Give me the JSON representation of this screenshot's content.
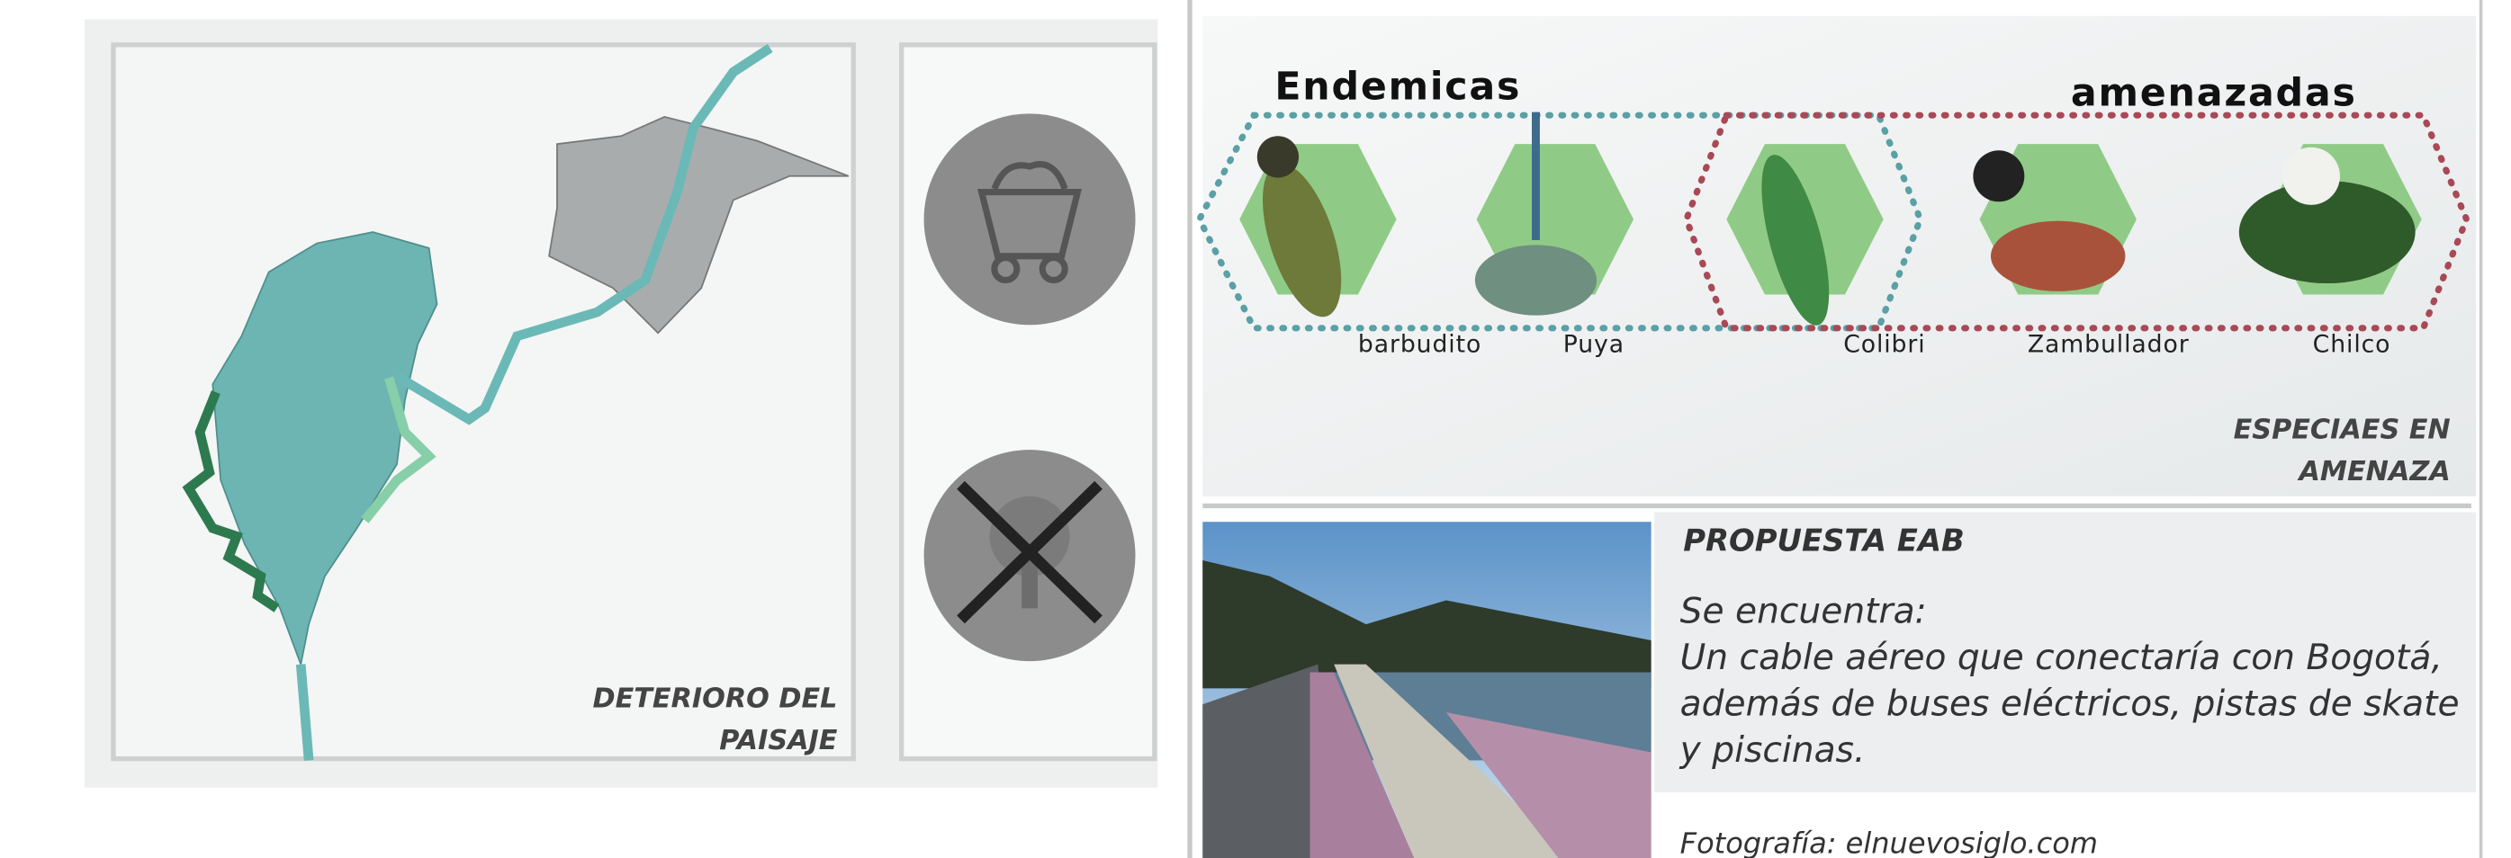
{
  "left_panel": {
    "caption": [
      "DETERIORO DEL",
      "PAISAJE"
    ]
  },
  "species": {
    "endemic_title": "Endemicas",
    "threatened_title": "amenazadas",
    "items": [
      "barbudito",
      "Puya",
      "Colibri",
      "Zambullador",
      "Chilco"
    ],
    "caption": [
      "ESPECIAES EN",
      "AMENAZA"
    ]
  },
  "proposal": {
    "title": "PROPUESTA EAB",
    "lines": [
      "Se encuentra:",
      "Un cable aéreo que conectaría con Bogotá,",
      "además de buses eléctricos, pistas de skate",
      "y piscinas."
    ],
    "credit": "Fotografía: elnuevosiglo.com"
  }
}
